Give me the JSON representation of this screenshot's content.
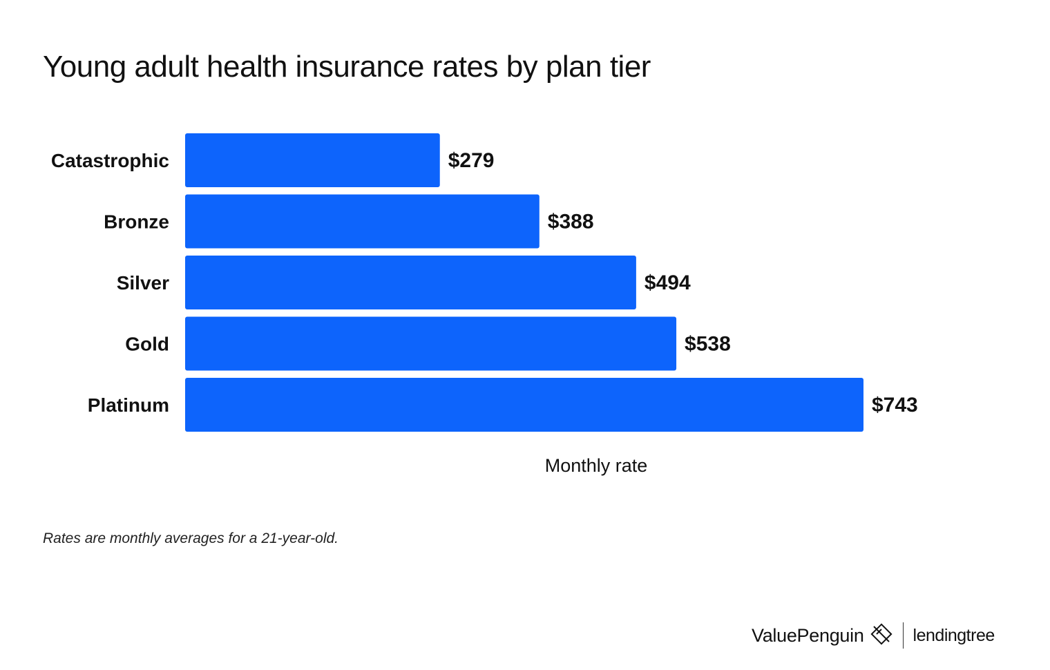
{
  "chart_data": {
    "type": "bar",
    "orientation": "horizontal",
    "title": "Young adult health insurance rates by plan tier",
    "categories": [
      "Catastrophic",
      "Bronze",
      "Silver",
      "Gold",
      "Platinum"
    ],
    "values": [
      279,
      388,
      494,
      538,
      743
    ],
    "value_labels": [
      "$279",
      "$388",
      "$494",
      "$538",
      "$743"
    ],
    "xlabel": "Monthly rate",
    "ylabel": "",
    "xlim": [
      0,
      743
    ],
    "grid": false,
    "bar_color": "#0D64FC"
  },
  "footnote": "Rates are monthly averages for a 21-year-old.",
  "branding": {
    "valuepenguin": "ValuePenguin",
    "lendingtree": "lendingtree"
  }
}
